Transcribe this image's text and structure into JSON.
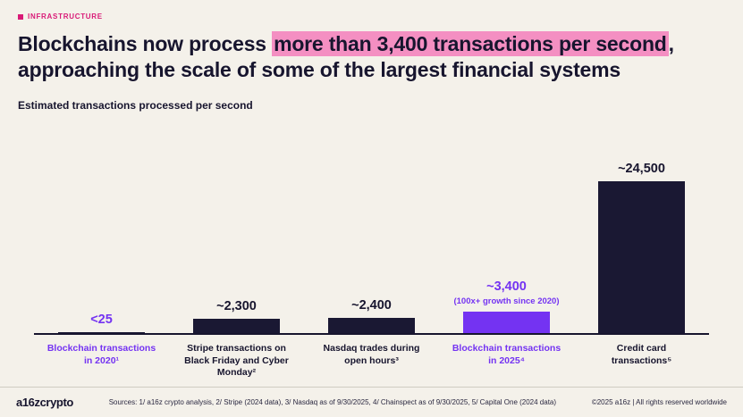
{
  "tag": {
    "label": "INFRASTRUCTURE"
  },
  "title": {
    "pre": "Blockchains now process ",
    "highlight": "more than 3,400 transactions per second",
    "post": ", approaching the scale of some of the largest financial systems"
  },
  "subtitle": "Estimated transactions processed per second",
  "chart_data": {
    "type": "bar",
    "title": "Estimated transactions processed per second",
    "categories": [
      "Blockchain transactions in 2020¹",
      "Stripe transactions on Black Friday and Cyber Monday²",
      "Nasdaq trades during open hours³",
      "Blockchain transactions in 2025⁴",
      "Credit card transactions⁵"
    ],
    "values": [
      25,
      2300,
      2400,
      3400,
      24500
    ],
    "value_labels": [
      "<25",
      "~2,300",
      "~2,400",
      "~3,400",
      "~24,500"
    ],
    "annotations": [
      "",
      "",
      "",
      "(100x+ growth since 2020)",
      ""
    ],
    "bar_colors": [
      "#1a1833",
      "#1a1833",
      "#1a1833",
      "#7433f2",
      "#1a1833"
    ],
    "purple_columns": [
      0,
      3
    ],
    "ylim": [
      0,
      24500
    ],
    "grid": false,
    "legend": false
  },
  "footer": {
    "logo": "a16zcrypto",
    "sources": "Sources: 1/ a16z crypto analysis, 2/ Stripe (2024 data), 3/ Nasdaq as of 9/30/2025, 4/ Chainspect as of 9/30/2025, 5/ Capital One (2024 data)",
    "copyright": "©2025 a16z | All rights reserved worldwide"
  },
  "colors": {
    "background": "#f4f1ea",
    "dark": "#17152e",
    "purple": "#7433f2",
    "bar_navy": "#1a1833",
    "highlight_pink": "#f48fc2",
    "tag_pink": "#d91a77"
  }
}
